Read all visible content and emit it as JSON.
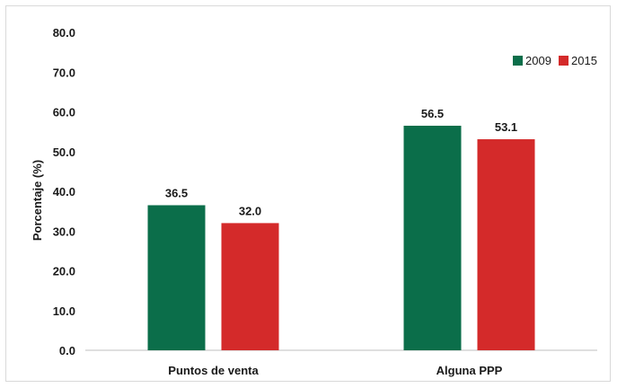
{
  "chart_data": {
    "type": "bar",
    "title": "",
    "xlabel": "",
    "ylabel": "Porcentaje (%)",
    "ylim": [
      0,
      80
    ],
    "ytick_step": 10,
    "ytick_labels": [
      "0.0",
      "10.0",
      "20.0",
      "30.0",
      "40.0",
      "50.0",
      "60.0",
      "70.0",
      "80.0"
    ],
    "categories": [
      "Puntos de venta",
      "Alguna PPP"
    ],
    "series": [
      {
        "name": "2009",
        "color": "#0b6e4a",
        "values": [
          36.5,
          56.5
        ],
        "labels": [
          "36.5",
          "56.5"
        ]
      },
      {
        "name": "2015",
        "color": "#d42a2a",
        "values": [
          32.0,
          53.1
        ],
        "labels": [
          "32.0",
          "53.1"
        ]
      }
    ],
    "legend_position": "top-right",
    "grid": false
  }
}
